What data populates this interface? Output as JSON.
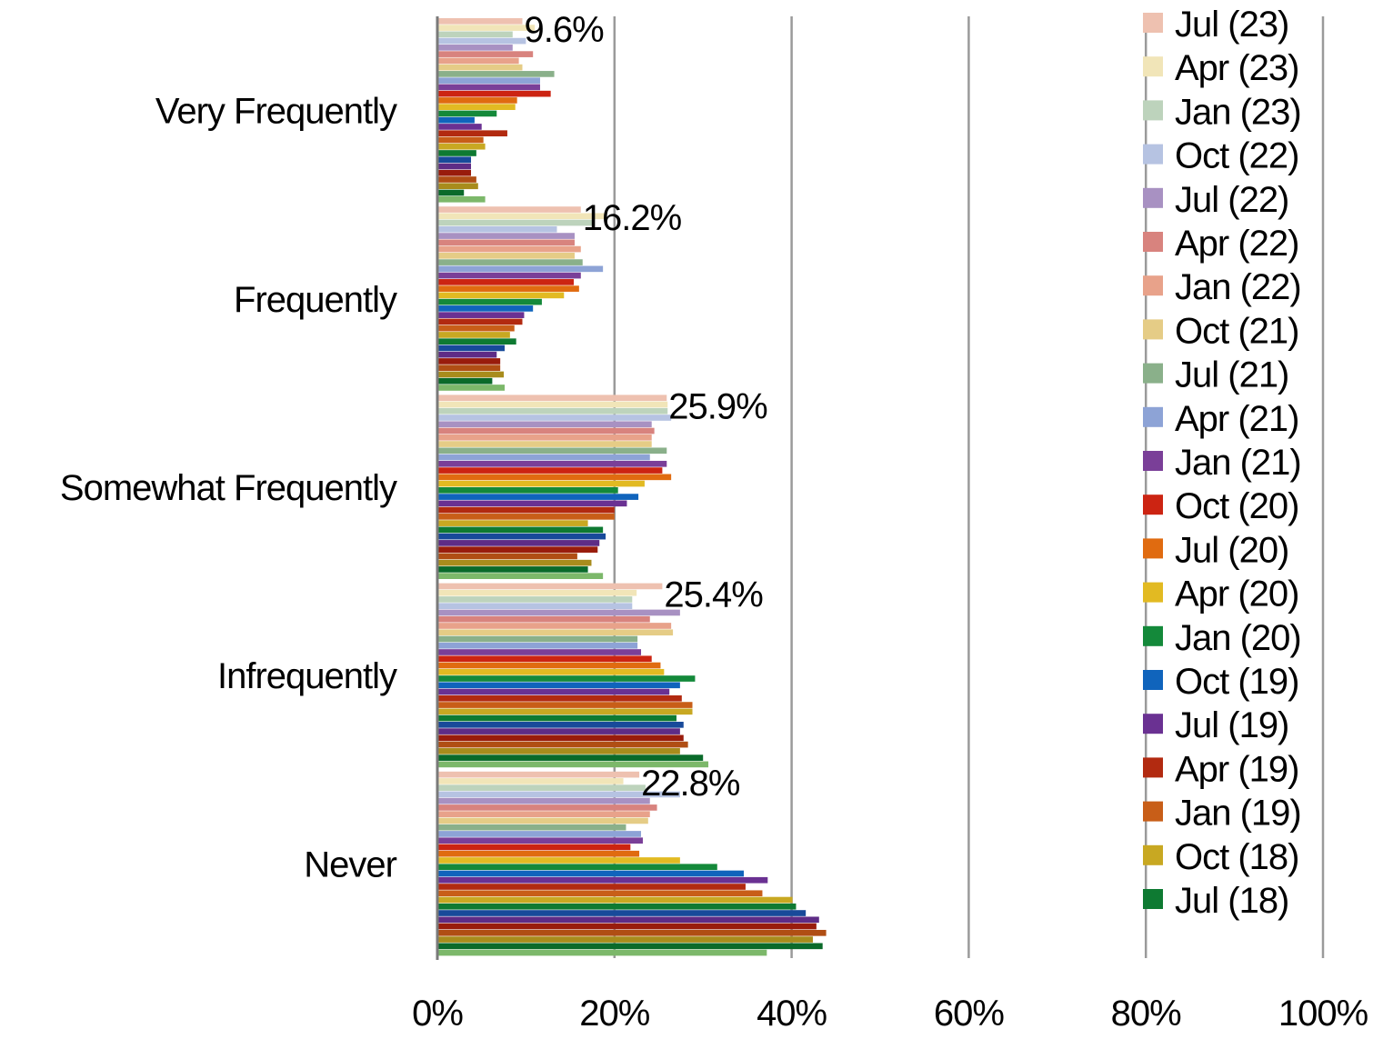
{
  "chart_data": {
    "type": "bar",
    "orientation": "horizontal",
    "categories": [
      "Very Frequently",
      "Frequently",
      "Somewhat Frequently",
      "Infrequently",
      "Never"
    ],
    "xlim": [
      0,
      100
    ],
    "x_ticks": [
      "0%",
      "20%",
      "40%",
      "60%",
      "80%",
      "100%"
    ],
    "grid": "vertical",
    "legend_position": "right",
    "data_labels": [
      "9.6%",
      "16.2%",
      "25.9%",
      "25.4%",
      "22.8%"
    ],
    "series": [
      {
        "name": "Jul (23)",
        "color": "#eec1b0",
        "values": [
          9.6,
          16.2,
          25.9,
          25.4,
          22.8
        ]
      },
      {
        "name": "Apr (23)",
        "color": "#f1e5b8",
        "values": [
          11.0,
          19.0,
          26.0,
          22.5,
          21.0
        ]
      },
      {
        "name": "Jan (23)",
        "color": "#bdd3bc",
        "values": [
          8.5,
          17.5,
          26.0,
          22.0,
          23.5
        ]
      },
      {
        "name": "Oct (22)",
        "color": "#b6c3e2",
        "values": [
          10.0,
          13.5,
          26.4,
          22.0,
          27.4
        ]
      },
      {
        "name": "Jul (22)",
        "color": "#a891c2",
        "values": [
          8.5,
          15.5,
          24.2,
          27.4,
          24.0
        ]
      },
      {
        "name": "Apr (22)",
        "color": "#d8837e",
        "values": [
          10.8,
          15.5,
          24.5,
          24.0,
          24.8
        ]
      },
      {
        "name": "Jan (22)",
        "color": "#e8a28a",
        "values": [
          9.2,
          16.2,
          24.2,
          26.4,
          24.0
        ]
      },
      {
        "name": "Oct (21)",
        "color": "#e5cc86",
        "values": [
          9.6,
          15.5,
          24.2,
          26.6,
          23.8
        ]
      },
      {
        "name": "Jul (21)",
        "color": "#8ab08a",
        "values": [
          13.2,
          16.4,
          25.9,
          22.6,
          21.3
        ]
      },
      {
        "name": "Apr (21)",
        "color": "#8da3d6",
        "values": [
          11.6,
          18.7,
          24.0,
          22.6,
          23.0
        ]
      },
      {
        "name": "Jan (21)",
        "color": "#7a3f98",
        "values": [
          11.6,
          16.2,
          25.9,
          23.0,
          23.2
        ]
      },
      {
        "name": "Oct (20)",
        "color": "#cc2412",
        "values": [
          12.8,
          15.4,
          25.4,
          24.2,
          21.8
        ]
      },
      {
        "name": "Jul (20)",
        "color": "#e06b10",
        "values": [
          9.0,
          16.0,
          26.4,
          25.2,
          22.8
        ]
      },
      {
        "name": "Apr (20)",
        "color": "#e2ba22",
        "values": [
          8.8,
          14.3,
          23.4,
          25.6,
          27.4
        ]
      },
      {
        "name": "Jan (20)",
        "color": "#14893a",
        "values": [
          6.7,
          11.8,
          20.4,
          29.1,
          31.6
        ]
      },
      {
        "name": "Oct (19)",
        "color": "#1064bc",
        "values": [
          4.2,
          10.8,
          22.7,
          27.4,
          34.6
        ]
      },
      {
        "name": "Jul (19)",
        "color": "#6a3192",
        "values": [
          5.0,
          9.8,
          21.4,
          26.2,
          37.3
        ]
      },
      {
        "name": "Apr (19)",
        "color": "#b22a10",
        "values": [
          7.9,
          9.6,
          20.0,
          27.6,
          34.8
        ]
      },
      {
        "name": "Jan (19)",
        "color": "#c85e18",
        "values": [
          5.2,
          8.7,
          20.0,
          28.8,
          36.7
        ]
      },
      {
        "name": "Oct (18)",
        "color": "#c8a822",
        "values": [
          5.4,
          8.2,
          17.0,
          28.8,
          40.1
        ]
      },
      {
        "name": "Jul (18)",
        "color": "#0e7a32",
        "values": [
          4.4,
          8.9,
          18.7,
          27.0,
          40.5
        ]
      },
      {
        "name": "",
        "color": "#184a9a",
        "values": [
          3.8,
          7.6,
          19.0,
          27.8,
          41.6
        ]
      },
      {
        "name": "",
        "color": "#5e2c86",
        "values": [
          3.8,
          6.7,
          18.3,
          27.4,
          43.1
        ]
      },
      {
        "name": "",
        "color": "#991c0c",
        "values": [
          3.8,
          7.1,
          18.1,
          27.8,
          42.8
        ]
      },
      {
        "name": "",
        "color": "#b04e14",
        "values": [
          4.4,
          7.1,
          15.8,
          28.3,
          43.9
        ]
      },
      {
        "name": "",
        "color": "#a88c1c",
        "values": [
          4.6,
          7.5,
          17.4,
          27.4,
          42.4
        ]
      },
      {
        "name": "",
        "color": "#0a6a2a",
        "values": [
          3.0,
          6.2,
          17.0,
          30.0,
          43.5
        ]
      },
      {
        "name": "",
        "color": "#7cb86a",
        "values": [
          5.4,
          7.6,
          18.7,
          30.6,
          37.2
        ]
      }
    ]
  }
}
